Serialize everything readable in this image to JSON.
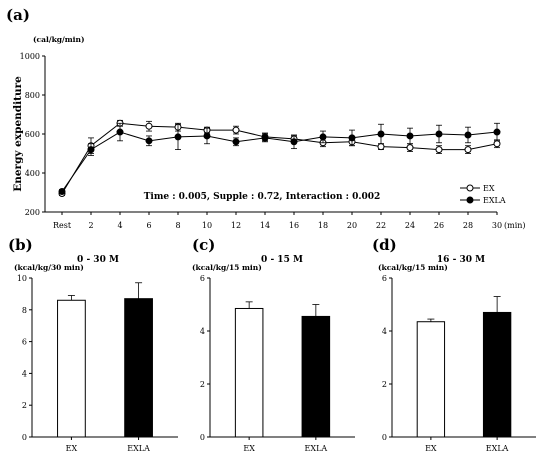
{
  "chart_data": [
    {
      "panel": "(a)",
      "type": "line",
      "ylabel": "Energy expenditure",
      "yunit": "(cal/kg/min)",
      "xunit": "(min)",
      "x": [
        "Rest",
        "2",
        "4",
        "6",
        "8",
        "10",
        "12",
        "14",
        "16",
        "18",
        "20",
        "22",
        "24",
        "26",
        "28",
        "30"
      ],
      "ylim": [
        200,
        1000
      ],
      "yticks": [
        200,
        400,
        600,
        800,
        1000
      ],
      "grid": false,
      "legend_position": "bottom-right",
      "annotation": "Time : 0.005,  Supple : 0.72,  Interaction : 0.002",
      "series": [
        {
          "name": "EX",
          "marker": "open-circle",
          "values": [
            295,
            540,
            655,
            640,
            635,
            620,
            620,
            585,
            575,
            555,
            560,
            535,
            530,
            520,
            520,
            550
          ],
          "errors": [
            10,
            40,
            15,
            25,
            20,
            15,
            20,
            20,
            15,
            20,
            20,
            15,
            20,
            20,
            20,
            20
          ]
        },
        {
          "name": "EXLA",
          "marker": "filled-circle",
          "values": [
            305,
            520,
            610,
            565,
            585,
            590,
            560,
            580,
            560,
            585,
            580,
            600,
            590,
            600,
            595,
            610
          ],
          "errors": [
            10,
            30,
            45,
            25,
            65,
            40,
            20,
            20,
            35,
            30,
            40,
            50,
            40,
            45,
            40,
            45
          ]
        }
      ]
    },
    {
      "panel": "(b)",
      "type": "bar",
      "title": "0 - 30 M",
      "yunit": "(kcal/kg/30 min)",
      "categories": [
        "EX",
        "EXLA"
      ],
      "values": [
        8.6,
        8.7
      ],
      "errors": [
        0.3,
        1.0
      ],
      "colors": [
        "#ffffff",
        "#000000"
      ],
      "ylim": [
        0,
        10
      ],
      "yticks": [
        0,
        2,
        4,
        6,
        8,
        10
      ]
    },
    {
      "panel": "(c)",
      "type": "bar",
      "title": "0 - 15 M",
      "yunit": "(kcal/kg/15 min)",
      "categories": [
        "EX",
        "EXLA"
      ],
      "values": [
        4.85,
        4.55
      ],
      "errors": [
        0.25,
        0.45
      ],
      "colors": [
        "#ffffff",
        "#000000"
      ],
      "ylim": [
        0,
        6
      ],
      "yticks": [
        0,
        2,
        4,
        6
      ]
    },
    {
      "panel": "(d)",
      "type": "bar",
      "title": "16 - 30 M",
      "yunit": "(kcal/kg/15 min)",
      "categories": [
        "EX",
        "EXLA"
      ],
      "values": [
        4.35,
        4.7
      ],
      "errors": [
        0.1,
        0.6
      ],
      "colors": [
        "#ffffff",
        "#000000"
      ],
      "ylim": [
        0,
        6
      ],
      "yticks": [
        0,
        2,
        4,
        6
      ]
    }
  ]
}
